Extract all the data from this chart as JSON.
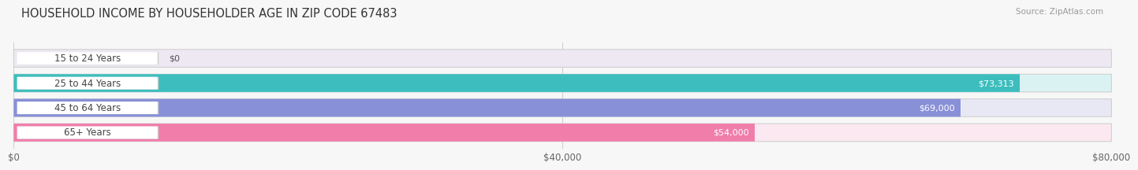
{
  "title": "HOUSEHOLD INCOME BY HOUSEHOLDER AGE IN ZIP CODE 67483",
  "source": "Source: ZipAtlas.com",
  "categories": [
    "15 to 24 Years",
    "25 to 44 Years",
    "45 to 64 Years",
    "65+ Years"
  ],
  "values": [
    0,
    73313,
    69000,
    54000
  ],
  "bar_colors": [
    "#b8a0cc",
    "#3dbdbd",
    "#8890d8",
    "#f07daa"
  ],
  "bar_bg_colors": [
    "#ede8f2",
    "#daf2f2",
    "#e8e8f5",
    "#fce8f0"
  ],
  "value_labels": [
    "$0",
    "$73,313",
    "$69,000",
    "$54,000"
  ],
  "xlim": [
    0,
    80000
  ],
  "xticks": [
    0,
    40000,
    80000
  ],
  "xticklabels": [
    "$0",
    "$40,000",
    "$80,000"
  ],
  "background_color": "#f7f7f7",
  "bar_height": 0.72,
  "title_fontsize": 10.5,
  "source_fontsize": 7.5,
  "label_fontsize": 8.5,
  "value_fontsize": 8.0
}
